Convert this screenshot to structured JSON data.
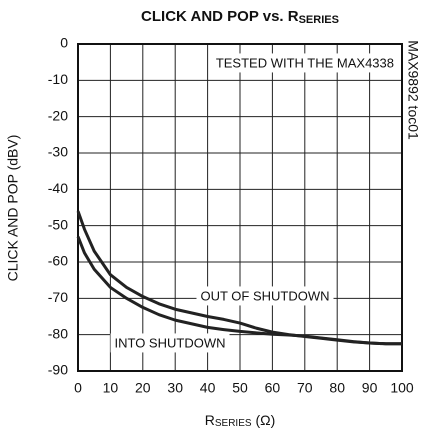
{
  "chart_data": {
    "type": "line",
    "title": "CLICK AND POP vs. R",
    "title_subscript": "SERIES",
    "x_label": "R",
    "x_label_subscript": "SERIES",
    "x_label_unit": " (Ω)",
    "y_label": "CLICK AND POP (dBV)",
    "annotation": "TESTED WITH THE MAX4338",
    "side_note": "MAX9892 toc01",
    "x": [
      0,
      2,
      5,
      10,
      15,
      20,
      25,
      30,
      35,
      40,
      45,
      50,
      55,
      60,
      65,
      70,
      75,
      80,
      85,
      90,
      95,
      100
    ],
    "series": [
      {
        "name": "OUT OF SHUTDOWN",
        "color": "#222222",
        "values": [
          -46,
          -51,
          -57,
          -63.5,
          -67,
          -69.5,
          -71.5,
          -73,
          -74,
          -75,
          -75.8,
          -76.8,
          -78.2,
          -79.3,
          -80,
          -80.5,
          -81,
          -81.5,
          -82,
          -82.3,
          -82.5,
          -82.5
        ]
      },
      {
        "name": "INTO SHUTDOWN",
        "color": "#222222",
        "values": [
          -53,
          -57.5,
          -62,
          -67,
          -70,
          -72.5,
          -74.5,
          -76,
          -77,
          -78,
          -78.6,
          -79.1,
          -79.5,
          -79.9,
          -80.1,
          -80.4,
          -80.9,
          -81.4,
          -81.9,
          -82.3,
          -82.5,
          -82.5
        ]
      }
    ],
    "xlim": [
      0,
      100
    ],
    "xticks": [
      0,
      10,
      20,
      30,
      40,
      50,
      60,
      70,
      80,
      90,
      100
    ],
    "ylim": [
      -90,
      0
    ],
    "yticks": [
      0,
      -10,
      -20,
      -30,
      -40,
      -50,
      -60,
      -70,
      -80,
      -90
    ],
    "grid": true
  }
}
